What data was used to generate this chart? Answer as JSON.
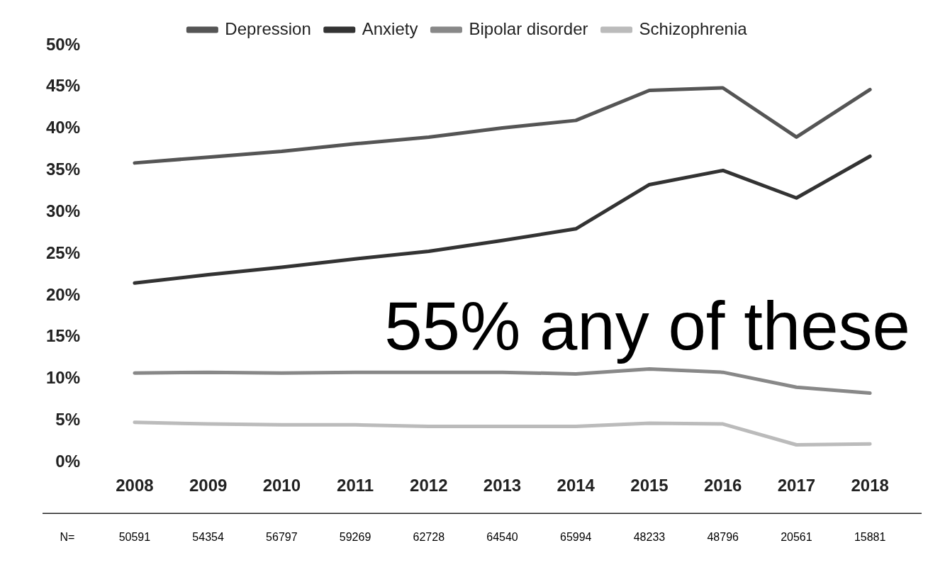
{
  "chart_data": {
    "type": "line",
    "categories": [
      "2008",
      "2009",
      "2010",
      "2011",
      "2012",
      "2013",
      "2014",
      "2015",
      "2016",
      "2017",
      "2018"
    ],
    "series": [
      {
        "name": "Depression",
        "color": "#555555",
        "values": [
          35.9,
          36.6,
          37.3,
          38.2,
          39.0,
          40.1,
          41.0,
          44.6,
          44.9,
          39.0,
          44.7
        ]
      },
      {
        "name": "Anxiety",
        "color": "#333333",
        "values": [
          21.5,
          22.5,
          23.4,
          24.4,
          25.3,
          26.6,
          28.0,
          33.3,
          35.0,
          31.7,
          36.7
        ]
      },
      {
        "name": "Bipolar disorder",
        "color": "#888888",
        "values": [
          10.7,
          10.8,
          10.7,
          10.8,
          10.8,
          10.8,
          10.6,
          11.2,
          10.8,
          9.0,
          8.3
        ]
      },
      {
        "name": "Schizophrenia",
        "color": "#bbbbbb",
        "values": [
          4.8,
          4.6,
          4.5,
          4.5,
          4.3,
          4.3,
          4.3,
          4.7,
          4.6,
          2.1,
          2.2
        ]
      }
    ],
    "ylim": [
      0,
      50
    ],
    "yticks": [
      {
        "value": 0,
        "label": "0%"
      },
      {
        "value": 5,
        "label": "5%"
      },
      {
        "value": 10,
        "label": "10%"
      },
      {
        "value": 15,
        "label": "15%"
      },
      {
        "value": 20,
        "label": "20%"
      },
      {
        "value": 25,
        "label": "25%"
      },
      {
        "value": 30,
        "label": "30%"
      },
      {
        "value": 35,
        "label": "35%"
      },
      {
        "value": 40,
        "label": "40%"
      },
      {
        "value": 45,
        "label": "45%"
      },
      {
        "value": 50,
        "label": "50%"
      }
    ],
    "grid": false,
    "legend": "top",
    "marker": "none",
    "line_style": "solid",
    "annotations": [
      "55% any of these",
      "N=",
      "50591",
      "54354",
      "56797",
      "59269",
      "62728",
      "64540",
      "65994",
      "48233",
      "48796",
      "20561",
      "15881"
    ]
  }
}
